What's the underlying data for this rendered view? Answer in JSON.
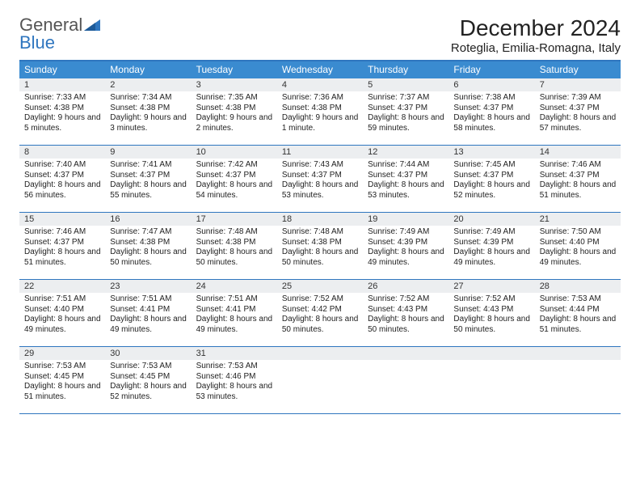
{
  "brand": {
    "name1": "General",
    "name2": "Blue"
  },
  "title": "December 2024",
  "location": "Roteglia, Emilia-Romagna, Italy",
  "colors": {
    "accent": "#2f76bf",
    "header_bg": "#3a8bd0",
    "daynum_bg": "#eceef0",
    "text": "#222222",
    "page_bg": "#ffffff"
  },
  "weekdays": [
    "Sunday",
    "Monday",
    "Tuesday",
    "Wednesday",
    "Thursday",
    "Friday",
    "Saturday"
  ],
  "weeks": [
    [
      {
        "n": "1",
        "sr": "Sunrise: 7:33 AM",
        "ss": "Sunset: 4:38 PM",
        "dl": "Daylight: 9 hours and 5 minutes."
      },
      {
        "n": "2",
        "sr": "Sunrise: 7:34 AM",
        "ss": "Sunset: 4:38 PM",
        "dl": "Daylight: 9 hours and 3 minutes."
      },
      {
        "n": "3",
        "sr": "Sunrise: 7:35 AM",
        "ss": "Sunset: 4:38 PM",
        "dl": "Daylight: 9 hours and 2 minutes."
      },
      {
        "n": "4",
        "sr": "Sunrise: 7:36 AM",
        "ss": "Sunset: 4:38 PM",
        "dl": "Daylight: 9 hours and 1 minute."
      },
      {
        "n": "5",
        "sr": "Sunrise: 7:37 AM",
        "ss": "Sunset: 4:37 PM",
        "dl": "Daylight: 8 hours and 59 minutes."
      },
      {
        "n": "6",
        "sr": "Sunrise: 7:38 AM",
        "ss": "Sunset: 4:37 PM",
        "dl": "Daylight: 8 hours and 58 minutes."
      },
      {
        "n": "7",
        "sr": "Sunrise: 7:39 AM",
        "ss": "Sunset: 4:37 PM",
        "dl": "Daylight: 8 hours and 57 minutes."
      }
    ],
    [
      {
        "n": "8",
        "sr": "Sunrise: 7:40 AM",
        "ss": "Sunset: 4:37 PM",
        "dl": "Daylight: 8 hours and 56 minutes."
      },
      {
        "n": "9",
        "sr": "Sunrise: 7:41 AM",
        "ss": "Sunset: 4:37 PM",
        "dl": "Daylight: 8 hours and 55 minutes."
      },
      {
        "n": "10",
        "sr": "Sunrise: 7:42 AM",
        "ss": "Sunset: 4:37 PM",
        "dl": "Daylight: 8 hours and 54 minutes."
      },
      {
        "n": "11",
        "sr": "Sunrise: 7:43 AM",
        "ss": "Sunset: 4:37 PM",
        "dl": "Daylight: 8 hours and 53 minutes."
      },
      {
        "n": "12",
        "sr": "Sunrise: 7:44 AM",
        "ss": "Sunset: 4:37 PM",
        "dl": "Daylight: 8 hours and 53 minutes."
      },
      {
        "n": "13",
        "sr": "Sunrise: 7:45 AM",
        "ss": "Sunset: 4:37 PM",
        "dl": "Daylight: 8 hours and 52 minutes."
      },
      {
        "n": "14",
        "sr": "Sunrise: 7:46 AM",
        "ss": "Sunset: 4:37 PM",
        "dl": "Daylight: 8 hours and 51 minutes."
      }
    ],
    [
      {
        "n": "15",
        "sr": "Sunrise: 7:46 AM",
        "ss": "Sunset: 4:37 PM",
        "dl": "Daylight: 8 hours and 51 minutes."
      },
      {
        "n": "16",
        "sr": "Sunrise: 7:47 AM",
        "ss": "Sunset: 4:38 PM",
        "dl": "Daylight: 8 hours and 50 minutes."
      },
      {
        "n": "17",
        "sr": "Sunrise: 7:48 AM",
        "ss": "Sunset: 4:38 PM",
        "dl": "Daylight: 8 hours and 50 minutes."
      },
      {
        "n": "18",
        "sr": "Sunrise: 7:48 AM",
        "ss": "Sunset: 4:38 PM",
        "dl": "Daylight: 8 hours and 50 minutes."
      },
      {
        "n": "19",
        "sr": "Sunrise: 7:49 AM",
        "ss": "Sunset: 4:39 PM",
        "dl": "Daylight: 8 hours and 49 minutes."
      },
      {
        "n": "20",
        "sr": "Sunrise: 7:49 AM",
        "ss": "Sunset: 4:39 PM",
        "dl": "Daylight: 8 hours and 49 minutes."
      },
      {
        "n": "21",
        "sr": "Sunrise: 7:50 AM",
        "ss": "Sunset: 4:40 PM",
        "dl": "Daylight: 8 hours and 49 minutes."
      }
    ],
    [
      {
        "n": "22",
        "sr": "Sunrise: 7:51 AM",
        "ss": "Sunset: 4:40 PM",
        "dl": "Daylight: 8 hours and 49 minutes."
      },
      {
        "n": "23",
        "sr": "Sunrise: 7:51 AM",
        "ss": "Sunset: 4:41 PM",
        "dl": "Daylight: 8 hours and 49 minutes."
      },
      {
        "n": "24",
        "sr": "Sunrise: 7:51 AM",
        "ss": "Sunset: 4:41 PM",
        "dl": "Daylight: 8 hours and 49 minutes."
      },
      {
        "n": "25",
        "sr": "Sunrise: 7:52 AM",
        "ss": "Sunset: 4:42 PM",
        "dl": "Daylight: 8 hours and 50 minutes."
      },
      {
        "n": "26",
        "sr": "Sunrise: 7:52 AM",
        "ss": "Sunset: 4:43 PM",
        "dl": "Daylight: 8 hours and 50 minutes."
      },
      {
        "n": "27",
        "sr": "Sunrise: 7:52 AM",
        "ss": "Sunset: 4:43 PM",
        "dl": "Daylight: 8 hours and 50 minutes."
      },
      {
        "n": "28",
        "sr": "Sunrise: 7:53 AM",
        "ss": "Sunset: 4:44 PM",
        "dl": "Daylight: 8 hours and 51 minutes."
      }
    ],
    [
      {
        "n": "29",
        "sr": "Sunrise: 7:53 AM",
        "ss": "Sunset: 4:45 PM",
        "dl": "Daylight: 8 hours and 51 minutes."
      },
      {
        "n": "30",
        "sr": "Sunrise: 7:53 AM",
        "ss": "Sunset: 4:45 PM",
        "dl": "Daylight: 8 hours and 52 minutes."
      },
      {
        "n": "31",
        "sr": "Sunrise: 7:53 AM",
        "ss": "Sunset: 4:46 PM",
        "dl": "Daylight: 8 hours and 53 minutes."
      },
      {
        "n": "",
        "empty": true
      },
      {
        "n": "",
        "empty": true
      },
      {
        "n": "",
        "empty": true
      },
      {
        "n": "",
        "empty": true
      }
    ]
  ]
}
